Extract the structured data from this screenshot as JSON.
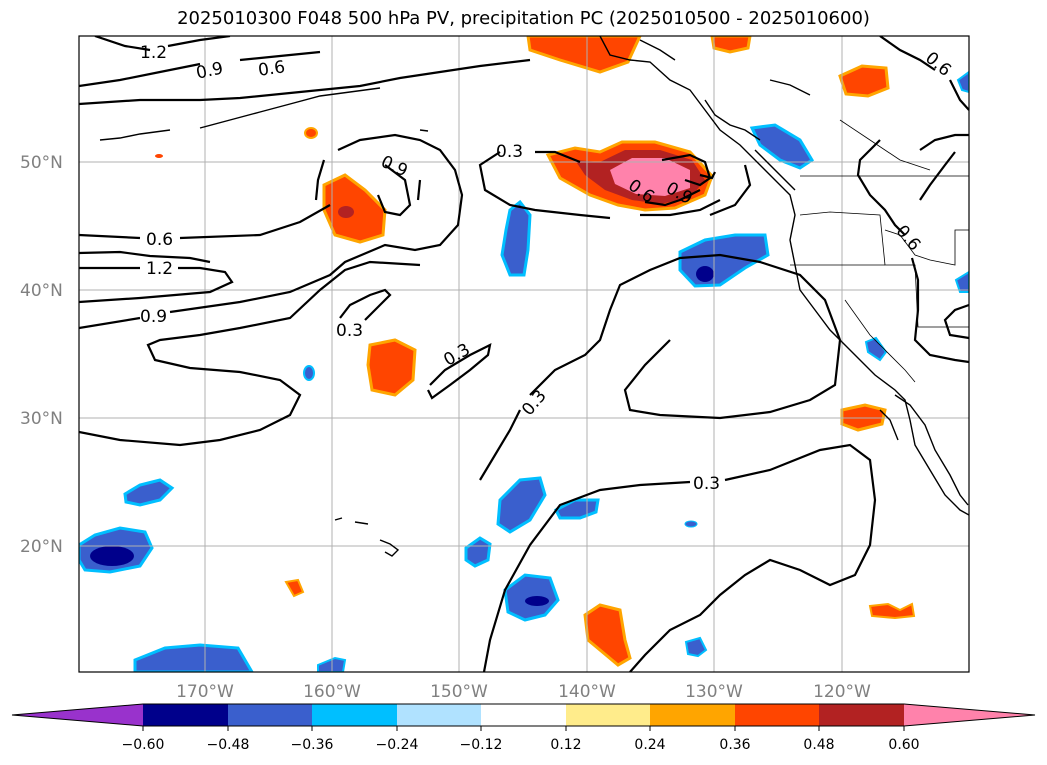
{
  "title": "2025010300 F048 500 hPa PV, precipitation PC (2025010500 - 2025010600)",
  "lat_labels": [
    "50°N",
    "40°N",
    "30°N",
    "20°N"
  ],
  "lon_labels": [
    "170°W",
    "160°W",
    "150°W",
    "140°W",
    "130°W",
    "120°W"
  ],
  "contour_labels": [
    "1.2",
    "0.9",
    "0.6",
    "0.9",
    "0.6",
    "1.2",
    "0.9",
    "0.3",
    "0.3",
    "0.3",
    "0.3",
    "0.3",
    "0.6",
    "0.9",
    "0.6",
    "0.6"
  ],
  "colorbar": {
    "ticks": [
      "−0.60",
      "−0.48",
      "−0.36",
      "−0.24",
      "−0.12",
      "0.12",
      "0.24",
      "0.36",
      "0.48",
      "0.60"
    ],
    "colors": [
      "#9932cc",
      "#00008b",
      "#3a5fcd",
      "#00bfff",
      "#b0e2ff",
      "#ffffff",
      "#ffec8b",
      "#ffa500",
      "#ff4500",
      "#b22222",
      "#ff82ab"
    ]
  }
}
